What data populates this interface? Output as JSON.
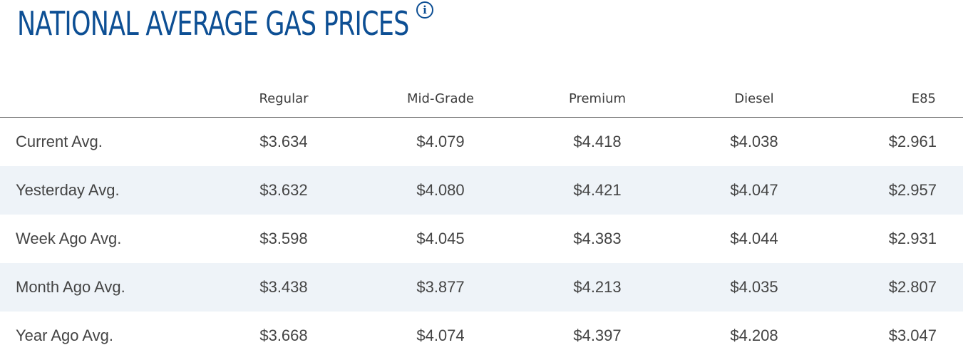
{
  "header": {
    "title": "NATIONAL AVERAGE GAS PRICES",
    "info_icon": "i"
  },
  "table": {
    "columns": [
      "",
      "Regular",
      "Mid-Grade",
      "Premium",
      "Diesel",
      "E85"
    ],
    "rows": [
      {
        "label": "Current Avg.",
        "values": [
          "$3.634",
          "$4.079",
          "$4.418",
          "$4.038",
          "$2.961"
        ]
      },
      {
        "label": "Yesterday Avg.",
        "values": [
          "$3.632",
          "$4.080",
          "$4.421",
          "$4.047",
          "$2.957"
        ]
      },
      {
        "label": "Week Ago Avg.",
        "values": [
          "$3.598",
          "$4.045",
          "$4.383",
          "$4.044",
          "$2.931"
        ]
      },
      {
        "label": "Month Ago Avg.",
        "values": [
          "$3.438",
          "$3.877",
          "$4.213",
          "$4.035",
          "$2.807"
        ]
      },
      {
        "label": "Year Ago Avg.",
        "values": [
          "$3.668",
          "$4.074",
          "$4.397",
          "$4.208",
          "$3.047"
        ]
      }
    ]
  },
  "colors": {
    "title": "#0d4f94",
    "alt_row": "#eef3f8",
    "text": "#444444"
  }
}
